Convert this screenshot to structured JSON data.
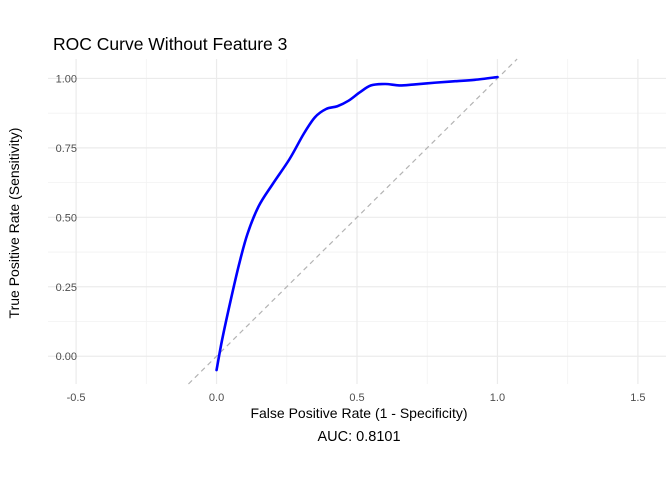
{
  "chart_data": {
    "type": "line",
    "title": "ROC Curve Without Feature 3",
    "xlabel": "False Positive Rate (1 - Specificity)",
    "ylabel": "True Positive Rate (Sensitivity)",
    "caption": "AUC: 0.8101",
    "xlim": [
      -0.6,
      1.6
    ],
    "ylim": [
      -0.1,
      1.07
    ],
    "x_ticks": [
      -0.5,
      0.0,
      0.5,
      1.0,
      1.5
    ],
    "x_tick_labels": [
      "-0.5",
      "0.0",
      "0.5",
      "1.0",
      "1.5"
    ],
    "y_ticks": [
      0.0,
      0.25,
      0.5,
      0.75,
      1.0
    ],
    "y_tick_labels": [
      "0.00",
      "0.25",
      "0.50",
      "0.75",
      "1.00"
    ],
    "grid": true,
    "series": [
      {
        "color": "#0000ff",
        "x": [
          0.0,
          0.02,
          0.05,
          0.08,
          0.11,
          0.15,
          0.2,
          0.26,
          0.31,
          0.35,
          0.39,
          0.43,
          0.47,
          0.51,
          0.55,
          0.6,
          0.65,
          0.7,
          0.78,
          0.85,
          0.92,
          1.0
        ],
        "y": [
          -0.05,
          0.06,
          0.2,
          0.33,
          0.44,
          0.54,
          0.62,
          0.71,
          0.8,
          0.86,
          0.89,
          0.9,
          0.92,
          0.95,
          0.975,
          0.98,
          0.975,
          0.978,
          0.985,
          0.99,
          0.995,
          1.005
        ]
      }
    ],
    "reference_line": {
      "slope": 1,
      "intercept": 0,
      "color": "#b3b3b3",
      "style": "dashed"
    }
  }
}
